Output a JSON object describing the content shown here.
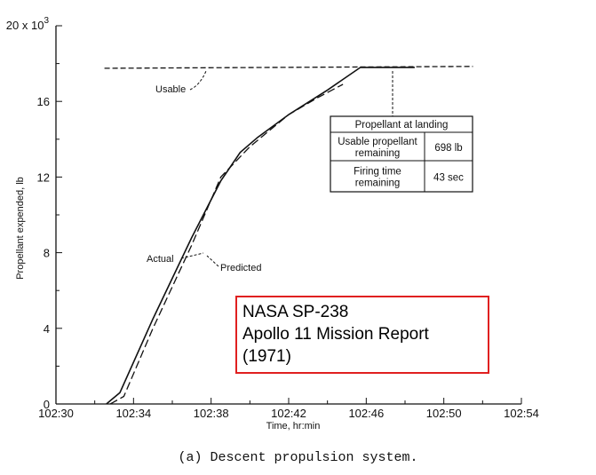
{
  "chart_data": {
    "type": "line",
    "caption": "(a)  Descent propulsion system.",
    "xlabel": "Time, hr:min",
    "ylabel": "Propellant expended, lb",
    "y_multiplier": "20 x 10",
    "y_multiplier_exp": "3",
    "x_ticks": [
      "102:30",
      "102:34",
      "102:38",
      "102:42",
      "102:46",
      "102:50",
      "102:54"
    ],
    "y_ticks": [
      "0",
      "4",
      "8",
      "12",
      "16"
    ],
    "xlim_minutes": [
      30,
      54
    ],
    "ylim_thousand_lb": [
      0,
      20
    ],
    "series": [
      {
        "name": "Actual",
        "style": "solid",
        "points": [
          [
            32.6,
            0
          ],
          [
            33.3,
            0.6
          ],
          [
            35.0,
            4.5
          ],
          [
            37.0,
            8.8
          ],
          [
            38.5,
            11.8
          ],
          [
            39.5,
            13.3
          ],
          [
            40.4,
            14.1
          ],
          [
            42.0,
            15.3
          ],
          [
            44.0,
            16.6
          ],
          [
            45.7,
            17.8
          ],
          [
            47.0,
            17.8
          ],
          [
            48.5,
            17.8
          ]
        ]
      },
      {
        "name": "Predicted",
        "style": "dashed",
        "points": [
          [
            32.8,
            0
          ],
          [
            33.5,
            0.4
          ],
          [
            35.0,
            4.0
          ],
          [
            37.0,
            8.4
          ],
          [
            38.5,
            12.0
          ],
          [
            40.0,
            13.6
          ],
          [
            42.0,
            15.3
          ],
          [
            43.5,
            16.2
          ],
          [
            44.8,
            16.9
          ]
        ]
      },
      {
        "name": "Usable",
        "style": "dashed",
        "points": [
          [
            32.5,
            17.75
          ],
          [
            51.5,
            17.85
          ]
        ]
      }
    ],
    "annotations": {
      "usable": "Usable",
      "actual": "Actual",
      "predicted": "Predicted"
    },
    "table": {
      "title": "Propellant at landing",
      "rows": [
        {
          "label_1": "Usable propellant",
          "label_2": "remaining",
          "value": "698 lb"
        },
        {
          "label_1": "Firing time",
          "label_2": "remaining",
          "value": "43 sec"
        }
      ]
    }
  },
  "source_box": {
    "line1": "NASA SP-238",
    "line2": "Apollo 11 Mission Report",
    "line3": "(1971)",
    "border_color": "#e02020"
  }
}
